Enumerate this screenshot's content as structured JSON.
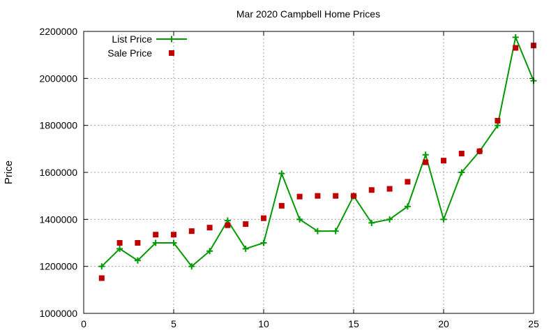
{
  "chart_data": {
    "type": "line",
    "title": "Mar 2020 Campbell Home Prices",
    "xlabel": "",
    "ylabel": "Price",
    "xlim": [
      0,
      25
    ],
    "ylim": [
      1000000,
      2200000
    ],
    "xticks": [
      0,
      5,
      10,
      15,
      20,
      25
    ],
    "yticks": [
      1000000,
      1200000,
      1400000,
      1600000,
      1800000,
      2000000,
      2200000
    ],
    "grid": true,
    "legend_position": "top-left",
    "series": [
      {
        "name": "List Price",
        "style": "line-plus",
        "color": "#009900",
        "x": [
          1,
          2,
          3,
          4,
          5,
          6,
          7,
          8,
          9,
          10,
          11,
          12,
          13,
          14,
          15,
          16,
          17,
          18,
          19,
          20,
          21,
          22,
          23,
          24,
          25
        ],
        "y": [
          1200000,
          1275000,
          1225000,
          1300000,
          1300000,
          1200000,
          1265000,
          1395000,
          1275000,
          1300000,
          1595000,
          1400000,
          1350000,
          1350000,
          1500000,
          1385000,
          1400000,
          1455000,
          1675000,
          1400000,
          1600000,
          1690000,
          1800000,
          2175000,
          1990000
        ]
      },
      {
        "name": "Sale Price",
        "style": "square",
        "color": "#c00000",
        "x": [
          1,
          2,
          3,
          4,
          5,
          6,
          7,
          8,
          9,
          10,
          11,
          12,
          13,
          14,
          15,
          16,
          17,
          18,
          19,
          20,
          21,
          22,
          23,
          24,
          25
        ],
        "y": [
          1150000,
          1300000,
          1300000,
          1335000,
          1335000,
          1350000,
          1365000,
          1375000,
          1380000,
          1405000,
          1458000,
          1497000,
          1500000,
          1500000,
          1500000,
          1525000,
          1530000,
          1560000,
          1643000,
          1650000,
          1680000,
          1690000,
          1820000,
          2130000,
          2140000
        ]
      }
    ]
  }
}
